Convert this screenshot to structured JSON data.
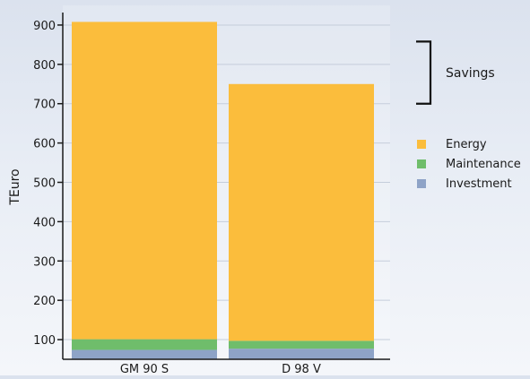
{
  "chart_data": {
    "type": "bar",
    "stacked": true,
    "categories": [
      "GM 90 S",
      "D 98 V"
    ],
    "series": [
      {
        "name": "Investment",
        "values": [
          24,
          27
        ],
        "color": "#8ea3c7"
      },
      {
        "name": "Maintenance",
        "values": [
          27,
          20
        ],
        "color": "#6fbd6b"
      },
      {
        "name": "Energy",
        "values": [
          807,
          653
        ],
        "color": "#fbbd3c"
      }
    ],
    "ylabel": "TEuro",
    "xlabel": "",
    "ylim": [
      50,
      950
    ],
    "yticks": [
      100,
      200,
      300,
      400,
      500,
      600,
      700,
      800,
      900
    ],
    "grid": true,
    "legend_position": "right",
    "annotation": {
      "label": "Savings",
      "from": 700,
      "to": 858
    },
    "colors": {
      "axis": "#1a1a1a",
      "grid": "#c5cddb",
      "text": "#1a1a1a"
    }
  }
}
